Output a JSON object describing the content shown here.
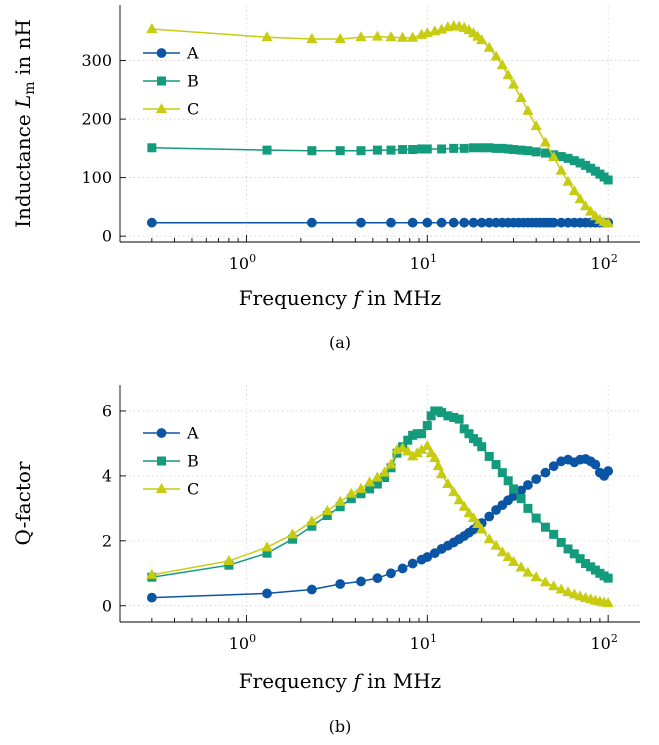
{
  "colors": {
    "A": "#0b55a5",
    "B": "#139b7c",
    "C": "#c8cc10"
  },
  "chart_data": [
    {
      "id": "a",
      "type": "line",
      "caption": "(a)",
      "xlabel_pre": "Frequency ",
      "xlabel_var": "f",
      "xlabel_post": " in MHz",
      "ylabel_pre": "Inductance ",
      "ylabel_var": "L",
      "ylabel_sub": "m",
      "ylabel_post": " in nH",
      "xscale": "log",
      "xlim": [
        0.2,
        150
      ],
      "ylim": [
        -10,
        395
      ],
      "xticks": [
        {
          "value": 1,
          "base": "10",
          "exp": "0"
        },
        {
          "value": 10,
          "base": "10",
          "exp": "1"
        },
        {
          "value": 100,
          "base": "10",
          "exp": "2"
        }
      ],
      "yticks": [
        0,
        100,
        200,
        300
      ],
      "grid": true,
      "legend_position": "upper-left",
      "series": [
        {
          "name": "A",
          "marker": "circle",
          "x": [
            0.3,
            2.3,
            4.3,
            6.3,
            8.3,
            10,
            12,
            14,
            16,
            18,
            20,
            22,
            24,
            26,
            28,
            30,
            32,
            34,
            36,
            38,
            40,
            42,
            44,
            46,
            48,
            50,
            55,
            60,
            65,
            70,
            75,
            80,
            85,
            90,
            95,
            100
          ],
          "y": [
            23,
            23,
            23,
            23,
            23,
            23,
            23,
            23,
            23,
            23,
            23,
            23,
            23,
            23,
            23,
            23,
            23,
            23,
            23,
            23,
            23,
            23,
            23,
            23,
            23,
            23,
            23,
            23,
            23,
            23,
            23,
            23,
            23,
            23,
            23,
            23
          ]
        },
        {
          "name": "B",
          "marker": "square",
          "x": [
            0.3,
            1.3,
            2.3,
            3.3,
            4.3,
            5.3,
            6.3,
            7.3,
            8.3,
            9.3,
            10,
            12,
            14,
            16,
            18,
            20,
            22,
            24,
            26,
            28,
            30,
            33,
            36,
            40,
            45,
            50,
            55,
            60,
            65,
            70,
            75,
            80,
            85,
            90,
            95,
            100
          ],
          "y": [
            151,
            147,
            146,
            146,
            146,
            147,
            147,
            148,
            148,
            149,
            149,
            149,
            150,
            150,
            151,
            151,
            151,
            150,
            150,
            149,
            148,
            147,
            146,
            144,
            142,
            139,
            136,
            133,
            129,
            125,
            121,
            116,
            111,
            106,
            101,
            96
          ]
        },
        {
          "name": "C",
          "marker": "triangle",
          "x": [
            0.3,
            1.3,
            2.3,
            3.3,
            4.3,
            5.3,
            6.3,
            7.3,
            8.3,
            9.3,
            10,
            11,
            12,
            13,
            14,
            15,
            16,
            17,
            18,
            19,
            20,
            22,
            24,
            26,
            28,
            30,
            33,
            36,
            40,
            45,
            50,
            55,
            60,
            65,
            70,
            75,
            80,
            85,
            90,
            95,
            100
          ],
          "y": [
            354,
            340,
            337,
            337,
            340,
            341,
            340,
            339,
            339,
            344,
            347,
            350,
            353,
            357,
            359,
            358,
            356,
            352,
            347,
            341,
            335,
            322,
            307,
            292,
            275,
            259,
            236,
            214,
            188,
            160,
            135,
            112,
            93,
            77,
            63,
            51,
            42,
            34,
            28,
            24,
            22
          ]
        }
      ]
    },
    {
      "id": "b",
      "type": "line",
      "caption": "(b)",
      "xlabel_pre": "Frequency ",
      "xlabel_var": "f",
      "xlabel_post": " in MHz",
      "ylabel_pre": "Q-factor",
      "ylabel_var": "",
      "ylabel_sub": "",
      "ylabel_post": "",
      "xscale": "log",
      "xlim": [
        0.2,
        150
      ],
      "ylim": [
        -0.5,
        6.8
      ],
      "xticks": [
        {
          "value": 1,
          "base": "10",
          "exp": "0"
        },
        {
          "value": 10,
          "base": "10",
          "exp": "1"
        },
        {
          "value": 100,
          "base": "10",
          "exp": "2"
        }
      ],
      "yticks": [
        0,
        2,
        4,
        6
      ],
      "grid": true,
      "legend_position": "upper-left",
      "series": [
        {
          "name": "A",
          "marker": "circle",
          "x": [
            0.3,
            1.3,
            2.3,
            3.3,
            4.3,
            5.3,
            6.3,
            7.3,
            8.3,
            9.3,
            10,
            11,
            12,
            13,
            14,
            15,
            16,
            17,
            18,
            19,
            20,
            22,
            24,
            26,
            28,
            30,
            33,
            36,
            40,
            45,
            50,
            55,
            60,
            65,
            70,
            75,
            80,
            85,
            90,
            95,
            100
          ],
          "y": [
            0.25,
            0.38,
            0.5,
            0.67,
            0.75,
            0.85,
            1.0,
            1.15,
            1.3,
            1.42,
            1.5,
            1.62,
            1.75,
            1.85,
            1.95,
            2.05,
            2.15,
            2.25,
            2.35,
            2.45,
            2.55,
            2.75,
            2.95,
            3.1,
            3.25,
            3.38,
            3.55,
            3.72,
            3.9,
            4.1,
            4.3,
            4.45,
            4.5,
            4.42,
            4.5,
            4.52,
            4.45,
            4.35,
            4.1,
            4.0,
            4.15
          ]
        },
        {
          "name": "B",
          "marker": "square",
          "x": [
            0.3,
            0.8,
            1.3,
            1.8,
            2.3,
            2.8,
            3.3,
            3.8,
            4.3,
            4.8,
            5.3,
            5.8,
            6.3,
            6.8,
            7.3,
            7.8,
            8.3,
            8.8,
            9.3,
            10,
            10.5,
            11,
            11.5,
            12,
            13,
            14,
            15,
            16,
            17,
            18,
            19,
            20,
            22,
            24,
            26,
            28,
            30,
            33,
            36,
            40,
            45,
            50,
            55,
            60,
            65,
            70,
            75,
            80,
            85,
            90,
            95,
            100
          ],
          "y": [
            0.88,
            1.25,
            1.62,
            2.05,
            2.45,
            2.78,
            3.05,
            3.3,
            3.45,
            3.6,
            3.75,
            3.95,
            4.25,
            4.7,
            4.9,
            5.1,
            5.25,
            5.3,
            5.3,
            5.55,
            5.85,
            6.0,
            6.0,
            5.95,
            5.85,
            5.8,
            5.75,
            5.45,
            5.3,
            5.15,
            5.05,
            4.9,
            4.6,
            4.35,
            4.1,
            3.85,
            3.6,
            3.3,
            3.0,
            2.7,
            2.42,
            2.2,
            1.95,
            1.75,
            1.6,
            1.45,
            1.3,
            1.2,
            1.1,
            1.0,
            0.92,
            0.85
          ]
        },
        {
          "name": "C",
          "marker": "triangle",
          "x": [
            0.3,
            0.8,
            1.3,
            1.8,
            2.3,
            2.8,
            3.3,
            3.8,
            4.3,
            4.8,
            5.3,
            5.8,
            6.3,
            6.8,
            7.3,
            7.8,
            8.3,
            8.8,
            9.3,
            10,
            10.5,
            11,
            11.5,
            12,
            13,
            14,
            15,
            16,
            17,
            18,
            19,
            20,
            22,
            24,
            26,
            28,
            30,
            33,
            36,
            40,
            45,
            50,
            55,
            60,
            65,
            70,
            75,
            80,
            85,
            90,
            95,
            100
          ],
          "y": [
            0.95,
            1.38,
            1.8,
            2.2,
            2.6,
            2.92,
            3.2,
            3.45,
            3.6,
            3.8,
            3.95,
            4.1,
            4.35,
            4.8,
            4.85,
            4.75,
            4.6,
            4.7,
            4.8,
            4.92,
            4.7,
            4.55,
            4.3,
            4.05,
            3.75,
            3.5,
            3.25,
            3.05,
            2.85,
            2.7,
            2.52,
            2.35,
            2.05,
            1.85,
            1.65,
            1.5,
            1.35,
            1.18,
            1.02,
            0.88,
            0.72,
            0.6,
            0.5,
            0.42,
            0.35,
            0.29,
            0.24,
            0.2,
            0.16,
            0.13,
            0.1,
            0.08
          ]
        }
      ]
    }
  ]
}
